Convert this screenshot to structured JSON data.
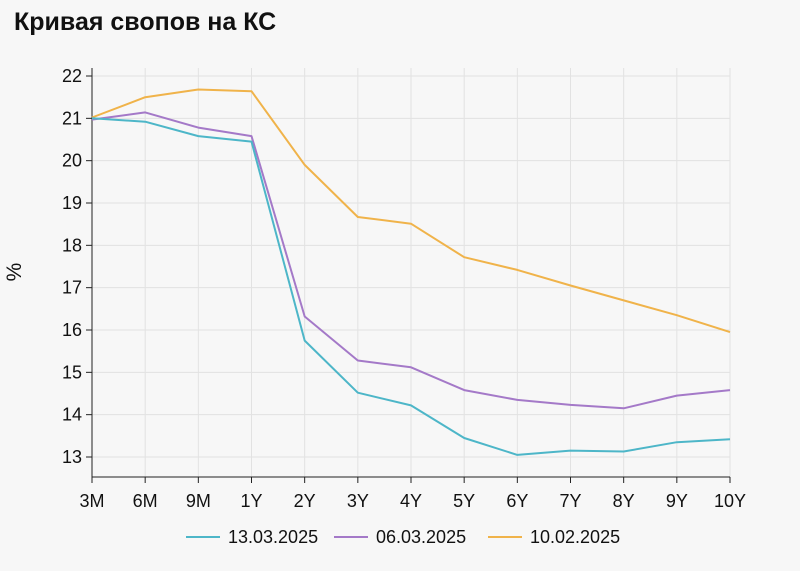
{
  "chart_data": {
    "type": "line",
    "title": "Кривая свопов на КС",
    "xlabel": "",
    "ylabel": "%",
    "categories": [
      "3M",
      "6M",
      "9M",
      "1Y",
      "2Y",
      "3Y",
      "4Y",
      "5Y",
      "6Y",
      "7Y",
      "8Y",
      "9Y",
      "10Y"
    ],
    "y_ticks": [
      "13",
      "14",
      "15",
      "16",
      "17",
      "18",
      "19",
      "20",
      "21",
      "22"
    ],
    "ylim": [
      12.5,
      22.2
    ],
    "grid": true,
    "legend_position": "bottom",
    "series": [
      {
        "name": "13.03.2025",
        "color": "#4db6c8",
        "values": [
          21.0,
          20.92,
          20.58,
          20.45,
          15.75,
          14.52,
          14.22,
          13.45,
          13.05,
          13.15,
          13.13,
          13.35,
          13.42
        ]
      },
      {
        "name": "06.03.2025",
        "color": "#a479c8",
        "values": [
          20.97,
          21.14,
          20.78,
          20.58,
          16.32,
          15.28,
          15.12,
          14.58,
          14.35,
          14.23,
          14.15,
          14.45,
          14.58
        ]
      },
      {
        "name": "10.02.2025",
        "color": "#f0b34a",
        "values": [
          21.02,
          21.5,
          21.68,
          21.64,
          19.9,
          18.67,
          18.51,
          17.72,
          17.42,
          17.05,
          16.7,
          16.35,
          15.95
        ]
      }
    ]
  }
}
